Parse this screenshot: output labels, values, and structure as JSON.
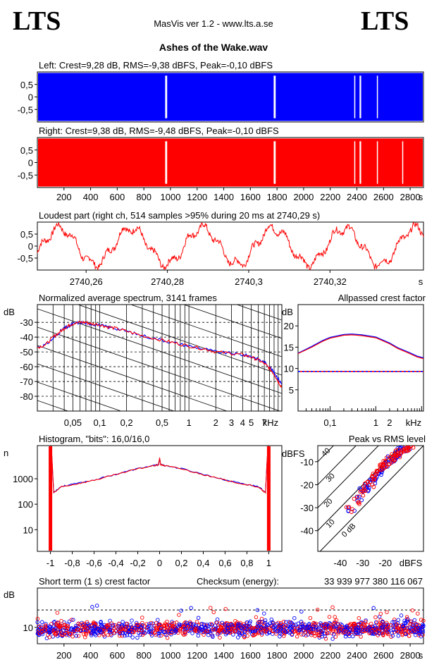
{
  "header": {
    "logo_left": "LTS",
    "logo_right": "LTS",
    "app_title": "MasVis ver 1.2 - www.lts.a.se",
    "file_title": "Ashes of the Wake.wav"
  },
  "colors": {
    "left": "#0000ff",
    "right": "#ff0000"
  },
  "chart_data": [
    {
      "type": "area",
      "id": "left",
      "title": "Left: Crest=9,28 dB, RMS=-9,38 dBFS, Peak=-0,10 dBFS",
      "yticks": [
        "0,5",
        "0",
        "-0,5"
      ],
      "ylim": [
        -1,
        1
      ],
      "xlim": [
        0,
        2900
      ],
      "level": 0.96,
      "quiet_seconds": [
        960,
        975,
        1775,
        1790,
        2380,
        2385,
        2420,
        2432,
        2550,
        2558
      ],
      "color": "#0000ff"
    },
    {
      "type": "area",
      "id": "right",
      "title": "Right: Crest=9,38 dB, RMS=-9,48 dBFS, Peak=-0,10 dBFS",
      "yticks": [
        "0,5",
        "0",
        "-0,5"
      ],
      "xticks": [
        "200",
        "400",
        "600",
        "800",
        "1000",
        "1200",
        "1400",
        "1600",
        "1800",
        "2000",
        "2200",
        "2400",
        "2600",
        "2800"
      ],
      "xunit": "s",
      "ylim": [
        -1,
        1
      ],
      "xlim": [
        0,
        2900
      ],
      "level": 0.96,
      "quiet_seconds": [
        960,
        975,
        1775,
        1790,
        2380,
        2385,
        2420,
        2432,
        2550,
        2558,
        2740,
        2742
      ],
      "color": "#ff0000"
    },
    {
      "type": "line",
      "id": "loudest",
      "title": "Loudest part (right ch, 514 samples >95% during 20 ms at 2740,29 s)",
      "yticks": [
        "0,5",
        "0",
        "-0,5"
      ],
      "xticks": [
        "2740,26",
        "2740,28",
        "2740,3",
        "2740,32"
      ],
      "xunit": "s",
      "xlim": [
        2740.248,
        2740.343
      ],
      "ylim": [
        -1,
        1
      ],
      "color": "#ff0000"
    },
    {
      "type": "line",
      "id": "spectrum",
      "title": "Normalized average spectrum, 3141 frames",
      "ylabel": "dB",
      "xunit": "kHz",
      "yticks": [
        "-30",
        "-40",
        "-50",
        "-60",
        "-70",
        "-80"
      ],
      "xticks": [
        "0,05",
        "0,1",
        "0,2",
        "0,5",
        "1",
        "2",
        "3",
        "4",
        "5",
        "7"
      ],
      "xlim_khz": [
        0.02,
        11
      ],
      "ylim": [
        -90,
        -18
      ],
      "series": [
        {
          "color": "#0000ff",
          "x": [
            0.02,
            0.025,
            0.03,
            0.035,
            0.04,
            0.045,
            0.05,
            0.06,
            0.07,
            0.08,
            0.1,
            0.12,
            0.15,
            0.2,
            0.3,
            0.5,
            0.7,
            1,
            1.5,
            2,
            3,
            4,
            5,
            6,
            7,
            8,
            9,
            10,
            11
          ],
          "y": [
            -47,
            -45,
            -41,
            -37,
            -34,
            -33,
            -31,
            -30,
            -30.5,
            -31,
            -32,
            -33,
            -34,
            -36,
            -39,
            -42,
            -44,
            -46,
            -48,
            -50,
            -51,
            -52,
            -53,
            -55,
            -57,
            -60,
            -64,
            -68,
            -72
          ]
        },
        {
          "color": "#ff0000",
          "x": [
            0.02,
            0.025,
            0.03,
            0.035,
            0.04,
            0.045,
            0.05,
            0.06,
            0.07,
            0.08,
            0.1,
            0.12,
            0.15,
            0.2,
            0.3,
            0.5,
            0.7,
            1,
            1.5,
            2,
            3,
            4,
            5,
            6,
            7,
            8,
            9,
            10,
            11
          ],
          "y": [
            -47,
            -45,
            -40,
            -37,
            -34,
            -32,
            -31,
            -30,
            -30,
            -31,
            -31.5,
            -33,
            -34,
            -36,
            -39,
            -42,
            -44,
            -46,
            -48,
            -50,
            -51,
            -52,
            -53.5,
            -55.5,
            -58,
            -61,
            -65,
            -70,
            -74
          ]
        }
      ]
    },
    {
      "type": "line",
      "id": "allpass",
      "title": "Allpassed crest factor",
      "ylabel": "dB",
      "xunit": "kHz",
      "yticks": [
        "20",
        "15",
        "10",
        "5"
      ],
      "xticks": [
        "0,1",
        "1",
        "2"
      ],
      "xlim_khz": [
        0.02,
        11
      ],
      "ylim": [
        0,
        25
      ],
      "reference_level": 9.3,
      "series": [
        {
          "color": "#0000ff",
          "x": [
            0.02,
            0.04,
            0.07,
            0.1,
            0.2,
            0.3,
            0.5,
            1,
            2,
            3,
            5,
            8,
            11
          ],
          "y": [
            13.6,
            15.2,
            16.6,
            17.3,
            18.0,
            18.1,
            17.9,
            17.4,
            16.0,
            14.9,
            13.9,
            12.9,
            12.5
          ]
        },
        {
          "color": "#ff0000",
          "x": [
            0.02,
            0.04,
            0.07,
            0.1,
            0.2,
            0.3,
            0.5,
            1,
            2,
            3,
            5,
            8,
            11
          ],
          "y": [
            13.5,
            15.0,
            16.4,
            17.1,
            17.8,
            17.9,
            17.7,
            17.2,
            15.8,
            14.7,
            13.7,
            12.7,
            12.3
          ]
        }
      ]
    },
    {
      "type": "line",
      "id": "histogram",
      "title": "Histogram, \"bits\": 16,0/16,0",
      "ylabel": "n",
      "yticks": [
        "1000",
        "100",
        "10"
      ],
      "xticks": [
        "-1",
        "-0,8",
        "-0,6",
        "-0,4",
        "-0,2",
        "0",
        "0,2",
        "0,4",
        "0,6",
        "0,8",
        "1"
      ],
      "xlim": [
        -1.12,
        1.12
      ],
      "ylog_range": [
        0.1,
        1.5
      ],
      "yexp_range": [
        0.15,
        4.3
      ],
      "series": [
        {
          "color": "#0000ff",
          "x": [
            -1,
            -0.97,
            -0.9,
            -0.8,
            -0.6,
            -0.4,
            -0.2,
            -0.05,
            -0.01,
            0,
            0.01,
            0.05,
            0.2,
            0.4,
            0.6,
            0.8,
            0.9,
            0.97,
            1
          ],
          "y": [
            80000,
            300,
            500,
            600,
            900,
            1500,
            2500,
            3300,
            3600,
            6000,
            3600,
            3300,
            2500,
            1500,
            900,
            600,
            500,
            300,
            80000
          ]
        },
        {
          "color": "#ff0000",
          "x": [
            -1,
            -0.97,
            -0.9,
            -0.8,
            -0.6,
            -0.4,
            -0.2,
            -0.05,
            -0.01,
            0,
            0.01,
            0.05,
            0.2,
            0.4,
            0.6,
            0.8,
            0.9,
            0.97,
            1
          ],
          "y": [
            100000,
            280,
            480,
            580,
            880,
            1450,
            2450,
            3250,
            3550,
            6500,
            3550,
            3250,
            2450,
            1450,
            880,
            580,
            480,
            280,
            100000
          ]
        }
      ]
    },
    {
      "type": "scatter",
      "id": "peakrms",
      "title": "Peak vs RMS level",
      "ylabel": "dBFS",
      "xunit": "dBFS",
      "yticks": [
        "-10",
        "-20",
        "-30",
        "-40"
      ],
      "xticks": [
        "-40",
        "-30",
        "-20"
      ],
      "xlim": [
        -50,
        -3
      ],
      "ylim": [
        -49,
        -3
      ],
      "diagonal_labels": [
        "40",
        "30",
        "20",
        "10",
        "0 dB"
      ],
      "series": [
        {
          "color": "#0000ff",
          "x": [
            -35,
            -32,
            -30,
            -28,
            -27,
            -26,
            -25,
            -24,
            -23,
            -22,
            -21,
            -20,
            -19,
            -18,
            -17,
            -16,
            -15,
            -14,
            -13,
            -12,
            -11,
            -10
          ],
          "y": [
            -30,
            -26,
            -23,
            -21,
            -22,
            -19,
            -18,
            -17,
            -15,
            -14,
            -13,
            -12,
            -10,
            -9,
            -9,
            -8,
            -7,
            -6,
            -5,
            -5,
            -4,
            -4
          ]
        },
        {
          "color": "#ff0000",
          "x": [
            -36,
            -33,
            -31,
            -29,
            -28,
            -26,
            -25,
            -24,
            -23,
            -22,
            -21,
            -20,
            -19,
            -18,
            -17,
            -16,
            -15,
            -14,
            -13,
            -12,
            -11,
            -10,
            -9
          ],
          "y": [
            -31,
            -27,
            -24,
            -22,
            -19,
            -20,
            -17,
            -16,
            -15,
            -13,
            -12,
            -11,
            -11,
            -9,
            -8,
            -8,
            -7,
            -6,
            -5,
            -5,
            -4,
            -4,
            -4
          ]
        }
      ]
    },
    {
      "type": "scatter",
      "id": "crest",
      "title": "Short term (1 s) crest factor",
      "checksum_label": "Checksum (energy):",
      "checksum_value": "33 939 977 380 116 067",
      "ylabel": "dB",
      "yticks": [
        "10"
      ],
      "xticks": [
        "200",
        "400",
        "600",
        "800",
        "1000",
        "1200",
        "1400",
        "1600",
        "1800",
        "2000",
        "2200",
        "2400",
        "2600",
        "2800"
      ],
      "xunit": "s",
      "xlim": [
        0,
        2900
      ],
      "ylim": [
        5,
        22
      ],
      "reference_level": 15.3,
      "typical": 9.5,
      "spread": 2.2,
      "count": 1450,
      "colors": [
        "#0000ff",
        "#ff0000"
      ]
    }
  ]
}
